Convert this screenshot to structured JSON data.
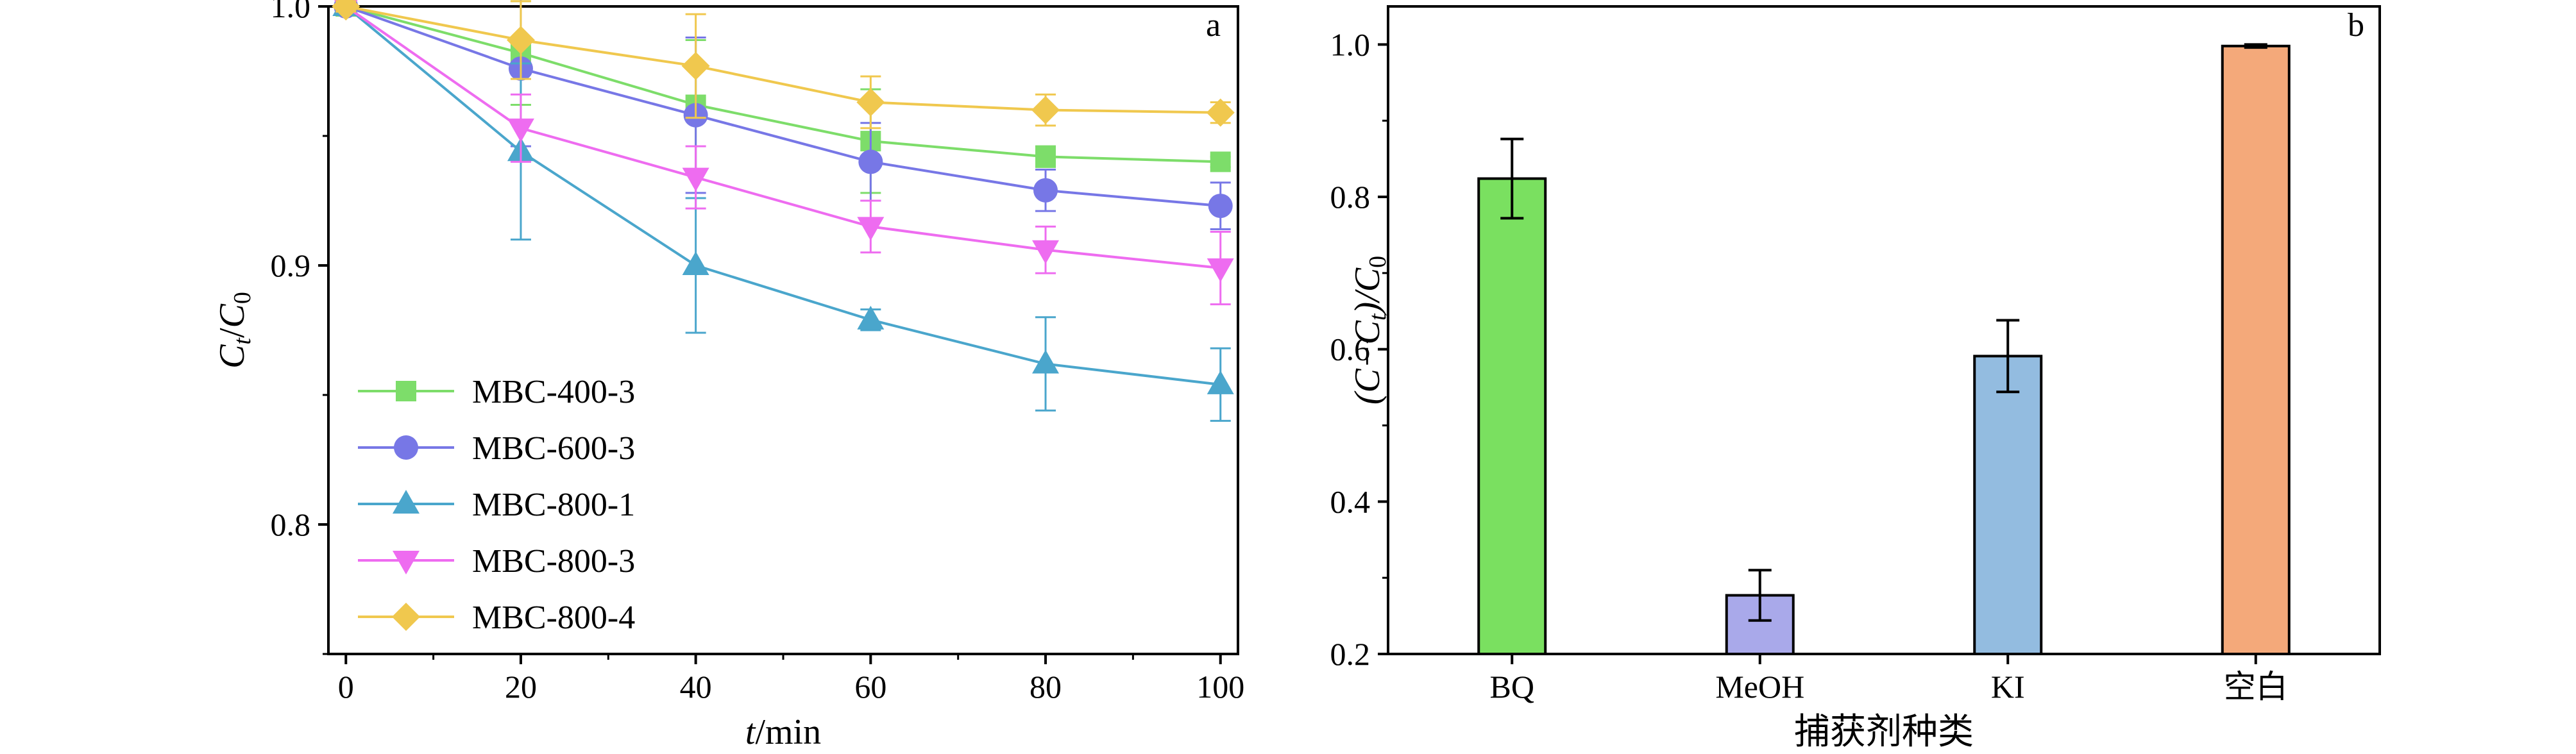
{
  "chart_data": [
    {
      "type": "line",
      "panel_label": "a",
      "ylabel_main": "C",
      "ylabel_sub1": "t",
      "ylabel_mid": "/",
      "ylabel_main2": "C",
      "ylabel_sub2": "0",
      "xlabel_var": "t",
      "xlabel_unit": "/min",
      "xlim": [
        -2,
        102
      ],
      "ylim": [
        0.75,
        1.0
      ],
      "x_ticks": [
        0,
        20,
        40,
        60,
        80,
        100
      ],
      "y_ticks": [
        0.8,
        0.9,
        1.0
      ],
      "x_tick_labels": [
        "0",
        "20",
        "40",
        "60",
        "80",
        "100"
      ],
      "y_tick_labels": [
        "0.8",
        "0.9",
        "1.0"
      ],
      "legend_position": "bottom-left",
      "x": [
        0,
        20,
        40,
        60,
        80,
        100
      ],
      "series": [
        {
          "name": "MBC-400-3",
          "marker": "square",
          "color": "#7ddd6a",
          "values": [
            1.0,
            0.982,
            0.962,
            0.948,
            0.942,
            0.94
          ],
          "errors": [
            0.002,
            0.02,
            0.025,
            0.02,
            0.004,
            0.002
          ]
        },
        {
          "name": "MBC-600-3",
          "marker": "circle",
          "color": "#7777e6",
          "values": [
            1.0,
            0.976,
            0.958,
            0.94,
            0.929,
            0.923
          ],
          "errors": [
            0.002,
            0.03,
            0.03,
            0.015,
            0.008,
            0.009
          ]
        },
        {
          "name": "MBC-800-1",
          "marker": "triangle-up",
          "color": "#4aa6cc",
          "values": [
            1.0,
            0.944,
            0.9,
            0.879,
            0.862,
            0.854
          ],
          "errors": [
            0.002,
            0.034,
            0.026,
            0.004,
            0.018,
            0.014
          ]
        },
        {
          "name": "MBC-800-3",
          "marker": "triangle-down",
          "color": "#ee6cf0",
          "values": [
            1.0,
            0.953,
            0.934,
            0.915,
            0.906,
            0.899
          ],
          "errors": [
            0.002,
            0.013,
            0.012,
            0.01,
            0.009,
            0.014
          ]
        },
        {
          "name": "MBC-800-4",
          "marker": "diamond",
          "color": "#f0c84e",
          "values": [
            1.0,
            0.987,
            0.977,
            0.963,
            0.96,
            0.959
          ],
          "errors": [
            0.002,
            0.015,
            0.02,
            0.01,
            0.006,
            0.004
          ]
        }
      ]
    },
    {
      "type": "bar",
      "panel_label": "b",
      "ylabel_prefix": "(C−C",
      "ylabel_sub1": "t",
      "ylabel_mid": ")/C",
      "ylabel_sub2": "0",
      "xlabel": "捕获剂种类",
      "ylim": [
        0.2,
        1.05
      ],
      "y_ticks": [
        0.2,
        0.4,
        0.6,
        0.8,
        1.0
      ],
      "y_tick_labels": [
        "0.2",
        "0.4",
        "0.6",
        "0.8",
        "1.0"
      ],
      "categories": [
        "BQ",
        "MeOH",
        "KI",
        "空白"
      ],
      "values": [
        0.824,
        0.277,
        0.591,
        0.998
      ],
      "errors": [
        0.052,
        0.033,
        0.047,
        0.002
      ],
      "colors": [
        "#7ae060",
        "#a9a9ea",
        "#93bce0",
        "#f4a97a"
      ]
    }
  ]
}
